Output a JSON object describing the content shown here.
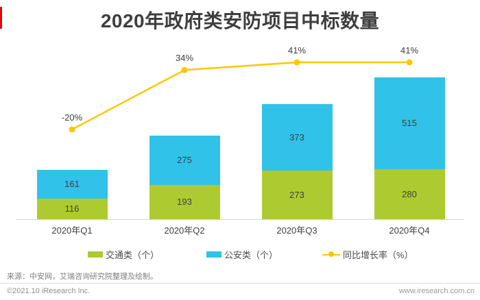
{
  "header": {
    "title": "2020年政府类安防项目中标数量",
    "accent_color": "#e60012"
  },
  "chart_data": {
    "type": "bar",
    "subtype": "stacked-bars-with-line",
    "title": "2020年政府类安防项目中标数量",
    "categories": [
      "2020年Q1",
      "2020年Q2",
      "2020年Q3",
      "2020年Q4"
    ],
    "series": [
      {
        "name": "交通类（个）",
        "type": "bar",
        "color": "#adcb30",
        "values": [
          116,
          193,
          273,
          280
        ]
      },
      {
        "name": "公安类（个）",
        "type": "bar",
        "color": "#30c2e9",
        "values": [
          161,
          275,
          373,
          515
        ]
      },
      {
        "name": "同比增长率（%）",
        "type": "line",
        "color": "#ffc600",
        "values": [
          -20,
          34,
          41,
          41
        ],
        "point_labels": [
          "-20%",
          "34%",
          "41%",
          "41%"
        ]
      }
    ],
    "stacked": true,
    "grid": false,
    "legend_position": "bottom",
    "value_axis_hidden": true
  },
  "legend": {
    "items": [
      {
        "label": "交通类（个）",
        "color": "#adcb30",
        "shape": "rect"
      },
      {
        "label": "公安类（个）",
        "color": "#30c2e9",
        "shape": "rect"
      },
      {
        "label": "同比增长率（%）",
        "color": "#ffc600",
        "shape": "line-dot"
      }
    ]
  },
  "footer": {
    "source": "来源：中安网，艾瑞咨询研究院整理及绘制。",
    "copyright": "©2021.10 iResearch Inc.",
    "website": "www.iresearch.com.cn"
  }
}
